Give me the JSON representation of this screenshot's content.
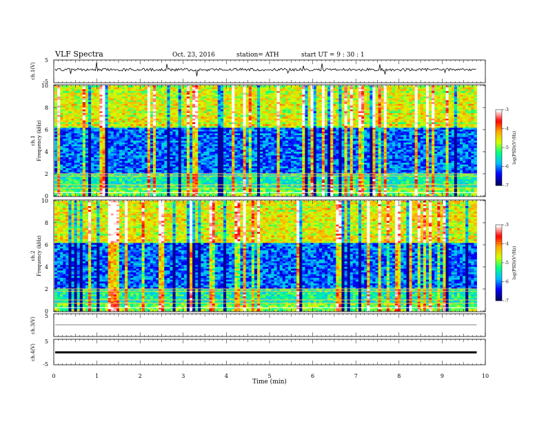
{
  "header": {
    "title": "VLF  Spectra",
    "date": "Oct. 23, 2016",
    "station": "station= ATH",
    "start": "start  UT  =   9  : 30 : 1"
  },
  "chart_data": [
    {
      "type": "line",
      "id": "ch1",
      "ylabel": "ch.1(V)",
      "ylim": [
        -5,
        5
      ],
      "yticks": [
        "5",
        "-5"
      ],
      "xlim": [
        0,
        10
      ],
      "description_level": 1.0
    },
    {
      "type": "heatmap",
      "id": "ch1-spec",
      "ylabel": "ch.1\nFrequency (kHz)",
      "ylabel_top": "ch.1",
      "ylabel_bottom": "Frequency  (kHz)",
      "ylim": [
        0,
        10
      ],
      "yticks": [
        "0",
        "2",
        "4",
        "6",
        "8",
        "10"
      ],
      "xlim": [
        0,
        9.8
      ],
      "colorbar": {
        "label": "log(PSD)(V²/Hz)",
        "range": [
          -7,
          -3
        ],
        "ticks": [
          "-3",
          "-4",
          "-5",
          "-6",
          "-7"
        ]
      }
    },
    {
      "type": "heatmap",
      "id": "ch2-spec",
      "ylabel_top": "ch.2",
      "ylabel_bottom": "Frequency  (kHz)",
      "ylim": [
        0,
        10
      ],
      "yticks": [
        "0",
        "2",
        "4",
        "6",
        "8",
        "10"
      ],
      "xlim": [
        0,
        9.8
      ],
      "colorbar": {
        "label": "log(PSD)(V²/Hz)",
        "range": [
          -7,
          -3
        ],
        "ticks": [
          "-3",
          "-4",
          "-5",
          "-6",
          "-7"
        ]
      }
    },
    {
      "type": "line",
      "id": "ch3",
      "ylabel": "ch.3(V)",
      "ylim": [
        -5,
        5
      ],
      "yticks": [
        "5"
      ],
      "xlim": [
        0,
        10
      ]
    },
    {
      "type": "line",
      "id": "ch4",
      "ylabel": "ch.4(V)",
      "ylim": [
        -5,
        5
      ],
      "yticks": [
        "5",
        "-5"
      ],
      "xlim": [
        0,
        10
      ]
    }
  ],
  "xaxis": {
    "label": "Time  (min)",
    "ticks": [
      "0",
      "1",
      "2",
      "3",
      "4",
      "5",
      "6",
      "7",
      "8",
      "9",
      "10"
    ]
  },
  "colors": {
    "scale": [
      "#000066",
      "#0000ff",
      "#00bfff",
      "#00ff88",
      "#d4ff00",
      "#ffaa00",
      "#ff0000",
      "#ffffff"
    ]
  }
}
